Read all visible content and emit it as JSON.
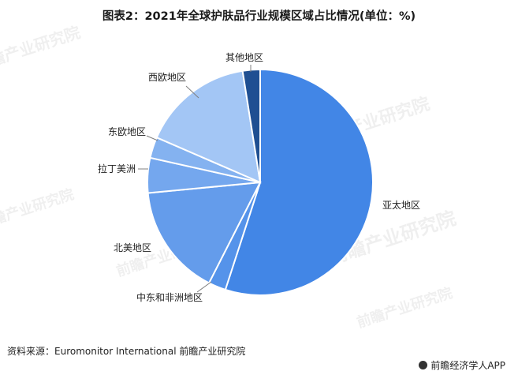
{
  "title": "图表2：2021年全球护肤品行业规模区域占比情况(单位：%)",
  "source": "资料来源：Euromonitor International 前瞻产业研究院",
  "brand": "前瞻经济学人APP",
  "watermark": "前瞻产业研究院",
  "chart_data": {
    "type": "pie",
    "slices": [
      {
        "name": "亚太地区",
        "value": 55,
        "color": "#4286e6"
      },
      {
        "name": "中东和非洲地区",
        "value": 2.5,
        "color": "#5593ea"
      },
      {
        "name": "北美地区",
        "value": 16,
        "color": "#649ceb"
      },
      {
        "name": "拉丁美洲",
        "value": 5,
        "color": "#74a7ee"
      },
      {
        "name": "东欧地区",
        "value": 3,
        "color": "#84b2f0"
      },
      {
        "name": "西欧地区",
        "value": 16,
        "color": "#a3c6f5"
      },
      {
        "name": "其他地区",
        "value": 2.5,
        "color": "#1f4f92"
      }
    ]
  }
}
